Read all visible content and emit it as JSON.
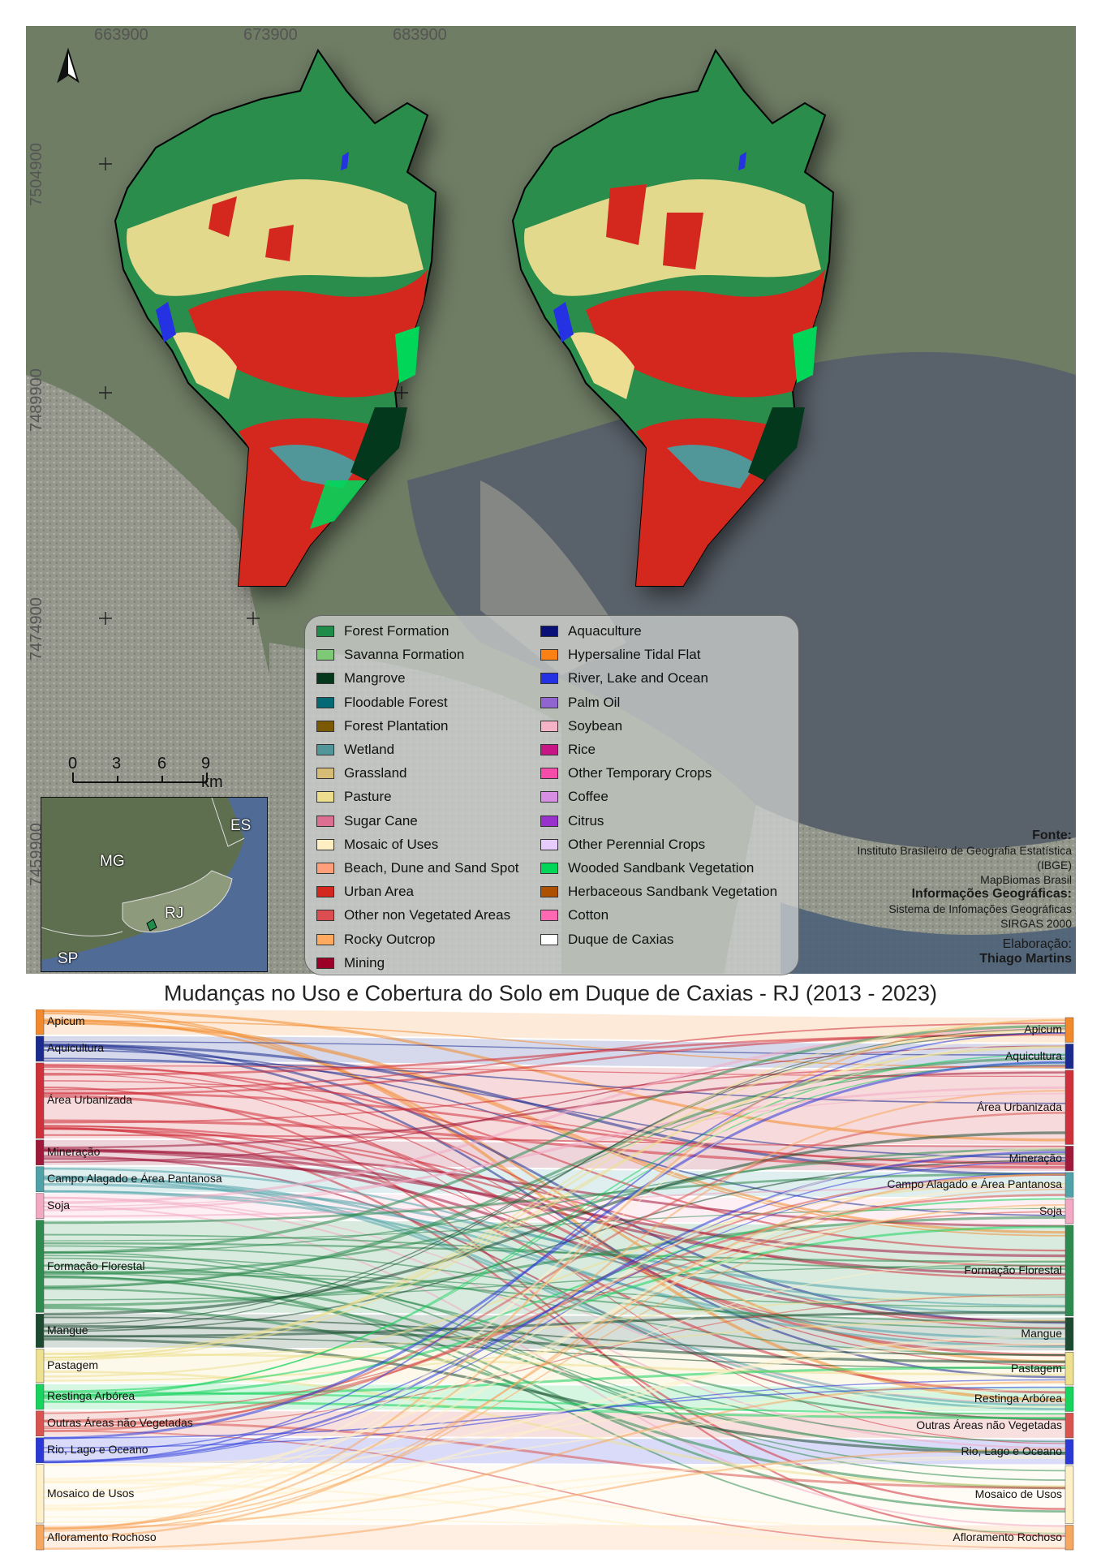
{
  "map": {
    "north_arrow": "north-arrow-icon",
    "x_ticks": [
      "663900",
      "673900",
      "683900"
    ],
    "y_ticks": [
      "7504900",
      "7489900",
      "7474900",
      "7459900"
    ],
    "scale": {
      "labels": [
        "0",
        "3",
        "6",
        "9 km"
      ]
    },
    "inset": {
      "labels": [
        "MG",
        "ES",
        "RJ",
        "SP"
      ]
    },
    "credits": {
      "fonte_title": "Fonte:",
      "fonte_lines": [
        "Instituto Brasileiro de Geografia Estatística",
        "(IBGE)",
        "MapBiomas Brasil"
      ],
      "info_title": "Informações Geográficas:",
      "info_lines": [
        "Sistema de Infomações Geográficas",
        "SIRGAS 2000"
      ],
      "elab_title": "Elaboração:",
      "author": "Thiago Martins"
    }
  },
  "legend": {
    "left": [
      {
        "label": "Forest Formation",
        "color": "#1f8d49"
      },
      {
        "label": "Savanna Formation",
        "color": "#7dc975"
      },
      {
        "label": "Mangrove",
        "color": "#04381d"
      },
      {
        "label": "Floodable Forest",
        "color": "#026975"
      },
      {
        "label": "Forest Plantation",
        "color": "#7a5900"
      },
      {
        "label": "Wetland",
        "color": "#519799"
      },
      {
        "label": "Grassland",
        "color": "#d6bc74"
      },
      {
        "label": "Pasture",
        "color": "#edde8e"
      },
      {
        "label": "Sugar Cane",
        "color": "#db7093"
      },
      {
        "label": "Mosaic of Uses",
        "color": "#ffefc3"
      },
      {
        "label": "Beach, Dune and Sand Spot",
        "color": "#ffa07a"
      },
      {
        "label": "Urban Area",
        "color": "#d4271e"
      },
      {
        "label": "Other non Vegetated Areas",
        "color": "#db4d4f"
      },
      {
        "label": "Rocky Outcrop",
        "color": "#ffaa5f"
      },
      {
        "label": "Mining",
        "color": "#9c0027"
      }
    ],
    "right": [
      {
        "label": "Aquaculture",
        "color": "#091077"
      },
      {
        "label": "Hypersaline Tidal Flat",
        "color": "#fc8114"
      },
      {
        "label": "River, Lake and Ocean",
        "color": "#2532e4"
      },
      {
        "label": "Palm Oil",
        "color": "#9065d0"
      },
      {
        "label": "Soybean",
        "color": "#f5b3c8"
      },
      {
        "label": "Rice",
        "color": "#c71585"
      },
      {
        "label": "Other Temporary Crops",
        "color": "#f54ca9"
      },
      {
        "label": "Coffee",
        "color": "#d68fe2"
      },
      {
        "label": "Citrus",
        "color": "#9932cc"
      },
      {
        "label": "Other Perennial Crops",
        "color": "#e6ccff"
      },
      {
        "label": "Wooded Sandbank Vegetation",
        "color": "#02d659"
      },
      {
        "label": "Herbaceous Sandbank Vegetation",
        "color": "#ad5100"
      },
      {
        "label": "Cotton",
        "color": "#ff69b4"
      },
      {
        "label": "Duque de Caxias",
        "color": "#ffffff"
      }
    ]
  },
  "sankey": {
    "title": "Mudanças no Uso e Cobertura do Solo em Duque de Caxias - RJ (2013 - 2023)",
    "nodes": [
      {
        "label": "Apicum",
        "color": "#f28a2c",
        "left": 3,
        "right": 3
      },
      {
        "label": "Aquicultura",
        "color": "#1a2a8e",
        "left": 3,
        "right": 3
      },
      {
        "label": "Área Urbanizada",
        "color": "#d0303a",
        "left": 9,
        "right": 9
      },
      {
        "label": "Mineração",
        "color": "#a0183a",
        "left": 3,
        "right": 3
      },
      {
        "label": "Campo Alagado e Área Pantanosa",
        "color": "#4fa3a8",
        "left": 3,
        "right": 3
      },
      {
        "label": "Soja",
        "color": "#f3a9c3",
        "left": 3,
        "right": 3
      },
      {
        "label": "Formação Florestal",
        "color": "#2e8b4e",
        "left": 11,
        "right": 11
      },
      {
        "label": "Mangue",
        "color": "#1c4a30",
        "left": 4,
        "right": 4
      },
      {
        "label": "Pastagem",
        "color": "#ede08e",
        "left": 4,
        "right": 4
      },
      {
        "label": "Restinga Arbórea",
        "color": "#16d45c",
        "left": 3,
        "right": 3
      },
      {
        "label": "Outras Áreas não Vegetadas",
        "color": "#d9534f",
        "left": 3,
        "right": 3
      },
      {
        "label": "Rio, Lago e Oceano",
        "color": "#2a38d8",
        "left": 3,
        "right": 3
      },
      {
        "label": "Mosaico de Usos",
        "color": "#fff0c8",
        "left": 7,
        "right": 7
      },
      {
        "label": "Afloramento Rochoso",
        "color": "#f7a860",
        "left": 3,
        "right": 3
      }
    ]
  }
}
